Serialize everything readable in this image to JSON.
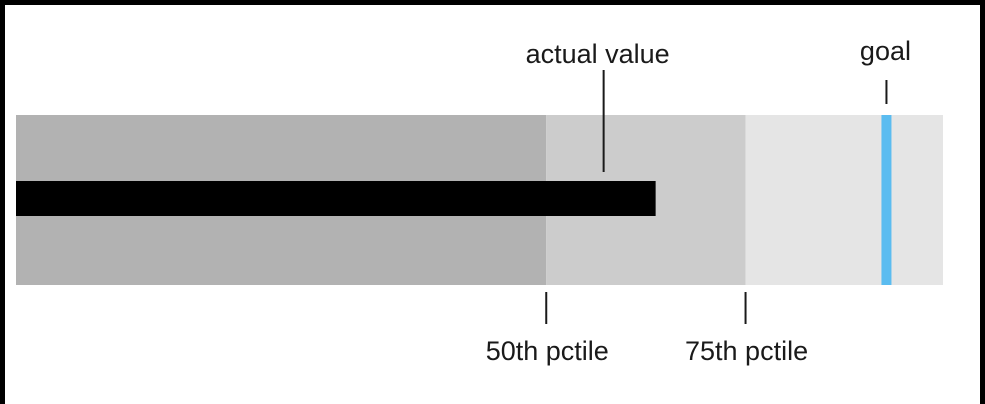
{
  "chart_data": {
    "type": "bullet",
    "range": [
      0,
      100
    ],
    "bands": [
      {
        "name": "below-50th",
        "from": 0,
        "to": 57.2,
        "color": "#b2b2b2"
      },
      {
        "name": "50th-to-75th",
        "from": 57.2,
        "to": 78.7,
        "color": "#cccccc"
      },
      {
        "name": "above-75th",
        "from": 78.7,
        "to": 100,
        "color": "#e5e5e5"
      }
    ],
    "actual": {
      "value": 69.0,
      "label": "actual value",
      "color": "#000000"
    },
    "goal": {
      "value": 93.9,
      "label": "goal",
      "color": "#5bbcf0"
    },
    "markers": [
      {
        "value": 57.2,
        "label": "50th pctile"
      },
      {
        "value": 78.7,
        "label": "75th pctile"
      }
    ]
  }
}
